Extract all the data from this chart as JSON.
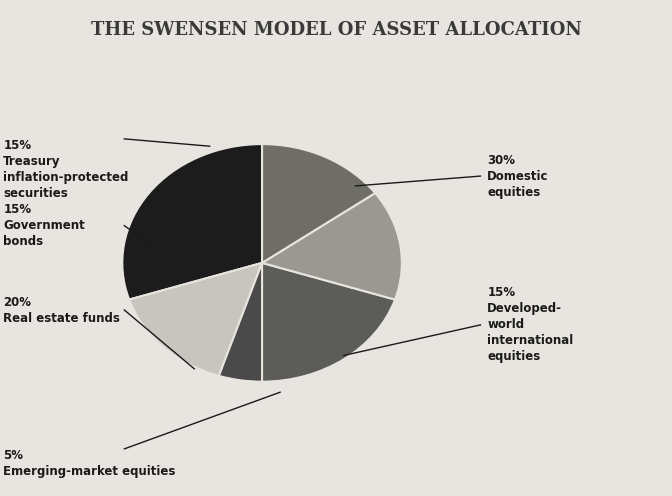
{
  "title": "THE SWENSEN MODEL OF ASSET ALLOCATION",
  "title_fontsize": 13,
  "title_color": "#3a3a3a",
  "background_color": "#e8e5e0",
  "slices": [
    {
      "label_pct": "30%",
      "label_name": "Domestic\nequities",
      "value": 30,
      "color": "#1c1c1c",
      "side": "right"
    },
    {
      "label_pct": "15%",
      "label_name": "Developed-\nworld\ninternational\nequities",
      "value": 15,
      "color": "#c8c5be",
      "side": "right"
    },
    {
      "label_pct": "5%",
      "label_name": "Emerging-market equities",
      "value": 5,
      "color": "#4a4a4a",
      "side": "left"
    },
    {
      "label_pct": "20%",
      "label_name": "Real estate funds",
      "value": 20,
      "color": "#5c5c58",
      "side": "left"
    },
    {
      "label_pct": "15%",
      "label_name": "Government\nbonds",
      "value": 15,
      "color": "#9a9890",
      "side": "left"
    },
    {
      "label_pct": "15%",
      "label_name": "Treasury\ninflation-protected\nsecurities",
      "value": 15,
      "color": "#6e6e66",
      "side": "left"
    }
  ],
  "startangle": 90,
  "edge_color": "#e8e5e0",
  "edge_lw": 1.5
}
